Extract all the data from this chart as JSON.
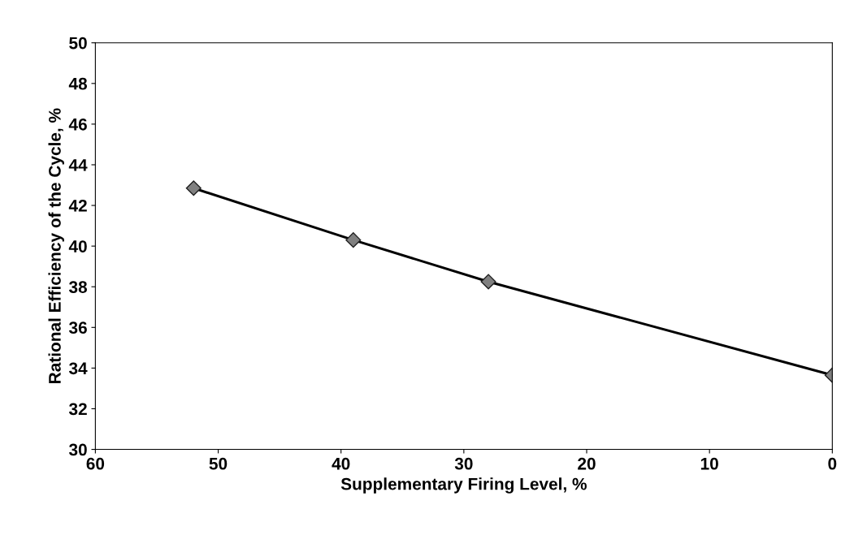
{
  "chart_data": {
    "type": "line",
    "xlabel": "Supplementary Firing Level, %",
    "ylabel": "Rational Efficiency of the Cycle, %",
    "x": [
      52,
      39,
      28,
      0
    ],
    "series": [
      {
        "color": "#000000",
        "values": [
          42.85,
          40.3,
          38.25,
          33.65
        ]
      }
    ],
    "xlim": [
      60,
      0
    ],
    "xticks": [
      60,
      50,
      40,
      30,
      20,
      10,
      0
    ],
    "ylim": [
      30,
      50
    ],
    "yticks": [
      30,
      32,
      34,
      36,
      38,
      40,
      42,
      44,
      46,
      48,
      50
    ],
    "marker": "diamond",
    "line_style": "solid",
    "grid": false,
    "legend": false
  }
}
